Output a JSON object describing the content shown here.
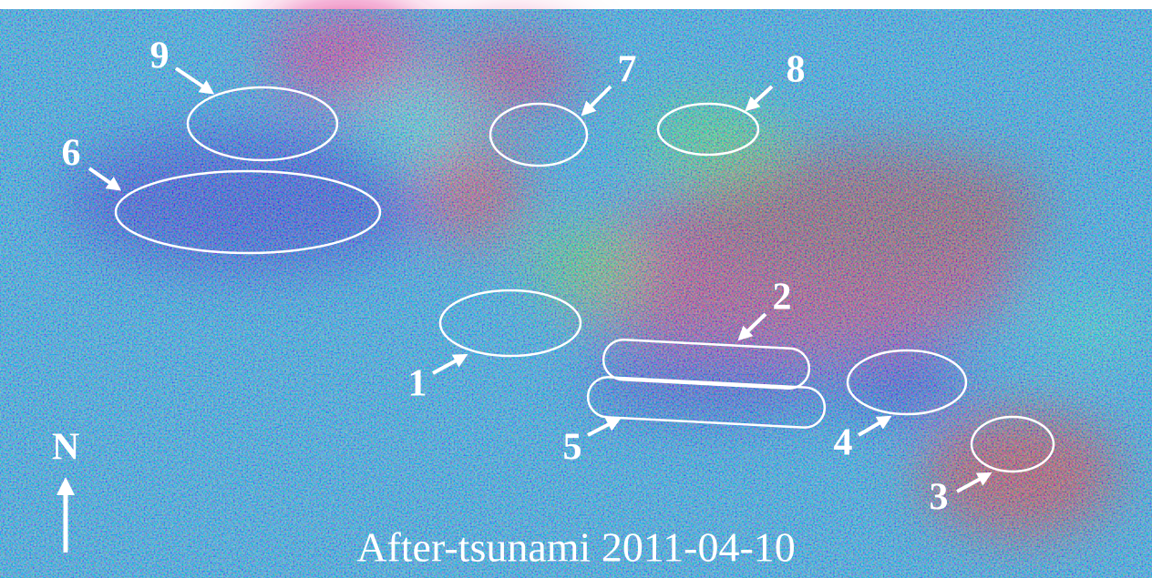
{
  "labels": [
    "1",
    "2",
    "3",
    "4",
    "5",
    "6",
    "7",
    "8",
    "9"
  ],
  "north": "N",
  "caption": "After-tsunami 2011-04-10"
}
